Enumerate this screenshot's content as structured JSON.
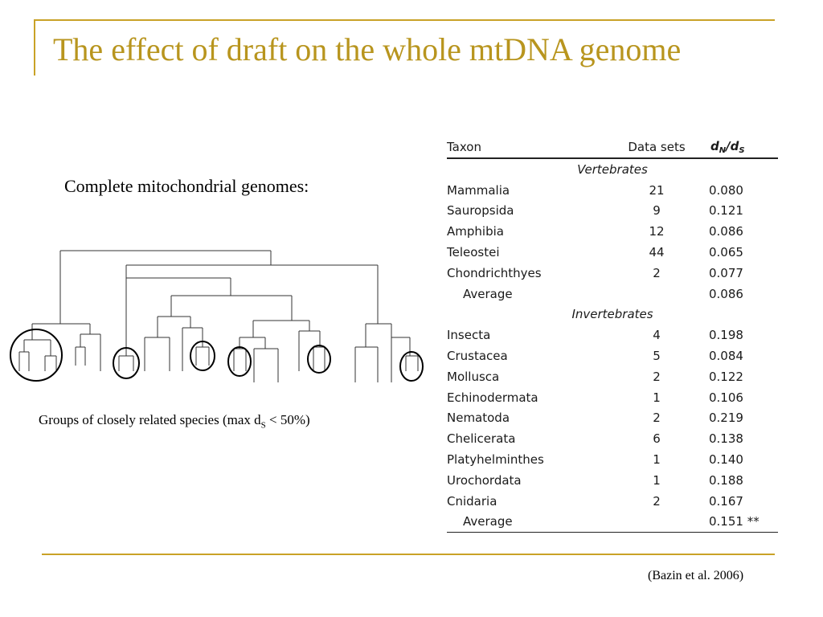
{
  "title": "The effect of draft on the whole mtDNA genome",
  "subtitle": "Complete mitochondrial genomes:",
  "caption": {
    "prefix": "Groups of closely related species (max d",
    "subscript": "S",
    "suffix": " < 50%)"
  },
  "citation": "(Bazin et al. 2006)",
  "table": {
    "headers": {
      "taxon": "Taxon",
      "data_sets": "Data sets",
      "ratio_n": "d",
      "ratio_n_sub": "N",
      "ratio_sep": "/d",
      "ratio_s_sub": "S"
    },
    "groups": [
      {
        "label": "Vertebrates",
        "rows": [
          {
            "taxon": "Mammalia",
            "data_sets": "21",
            "ratio": "0.080"
          },
          {
            "taxon": "Sauropsida",
            "data_sets": "9",
            "ratio": "0.121"
          },
          {
            "taxon": "Amphibia",
            "data_sets": "12",
            "ratio": "0.086"
          },
          {
            "taxon": "Teleostei",
            "data_sets": "44",
            "ratio": "0.065"
          },
          {
            "taxon": "Chondrichthyes",
            "data_sets": "2",
            "ratio": "0.077"
          }
        ],
        "average_label": "Average",
        "average": "0.086"
      },
      {
        "label": "Invertebrates",
        "rows": [
          {
            "taxon": "Insecta",
            "data_sets": "4",
            "ratio": "0.198"
          },
          {
            "taxon": "Crustacea",
            "data_sets": "5",
            "ratio": "0.084"
          },
          {
            "taxon": "Mollusca",
            "data_sets": "2",
            "ratio": "0.122"
          },
          {
            "taxon": "Echinodermata",
            "data_sets": "1",
            "ratio": "0.106"
          },
          {
            "taxon": "Nematoda",
            "data_sets": "2",
            "ratio": "0.219"
          },
          {
            "taxon": "Chelicerata",
            "data_sets": "6",
            "ratio": "0.138"
          },
          {
            "taxon": "Platyhelminthes",
            "data_sets": "1",
            "ratio": "0.140"
          },
          {
            "taxon": "Urochordata",
            "data_sets": "1",
            "ratio": "0.188"
          },
          {
            "taxon": "Cnidaria",
            "data_sets": "2",
            "ratio": "0.167"
          }
        ],
        "average_label": "Average",
        "average": "0.151 **"
      }
    ]
  },
  "colors": {
    "accent": "#c9a227",
    "title": "#b8951e"
  }
}
